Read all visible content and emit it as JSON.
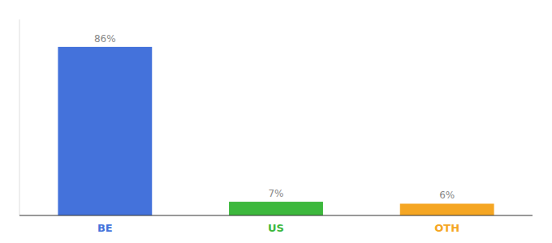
{
  "chart_data": {
    "type": "bar",
    "categories": [
      "BE",
      "US",
      "OTH"
    ],
    "values": [
      86,
      7,
      6
    ],
    "value_labels": [
      "86%",
      "7%",
      "6%"
    ],
    "colors": [
      "#4472db",
      "#3db83d",
      "#f5a623"
    ],
    "ylim": [
      0,
      100
    ],
    "data_labels": true,
    "tick_labels": "x"
  }
}
